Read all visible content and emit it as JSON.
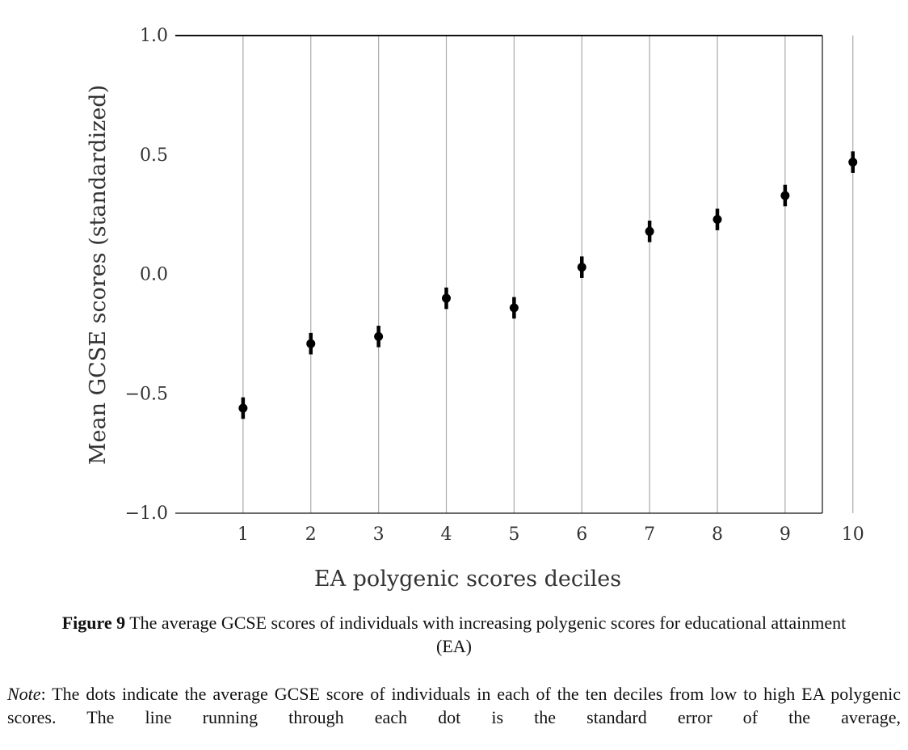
{
  "chart_data": {
    "type": "scatter",
    "x": [
      1,
      2,
      3,
      4,
      5,
      6,
      7,
      8,
      9,
      10
    ],
    "y": [
      -0.56,
      -0.29,
      -0.26,
      -0.1,
      -0.14,
      0.03,
      0.18,
      0.23,
      0.33,
      0.47
    ],
    "error": [
      0.045,
      0.045,
      0.045,
      0.045,
      0.045,
      0.045,
      0.045,
      0.045,
      0.045,
      0.045
    ],
    "xticks": [
      "1",
      "2",
      "3",
      "4",
      "5",
      "6",
      "7",
      "8",
      "9",
      "10"
    ],
    "yticks": [
      "−1.0",
      "−0.5",
      "0.0",
      "0.5",
      "1.0"
    ],
    "ylim": [
      -1.0,
      1.0
    ],
    "xlim": [
      0.0,
      9.55
    ],
    "xlabel": "EA polygenic scores deciles",
    "ylabel": "Mean GCSE scores (standardized)",
    "grid": "vertical",
    "colors": {
      "marker": "#000000",
      "grid": "#aaaaaa",
      "axis": "#111111",
      "text": "#333333"
    }
  },
  "caption": {
    "label": "Figure 9",
    "text": " The average GCSE scores of individuals with increasing polygenic scores for educational attainment (EA)"
  },
  "note": {
    "label": "Note",
    "text": ": The dots indicate the average GCSE score of individuals in each of the ten deciles from low to high EA polygenic scores. The line running through each dot is the standard error of the average,"
  }
}
